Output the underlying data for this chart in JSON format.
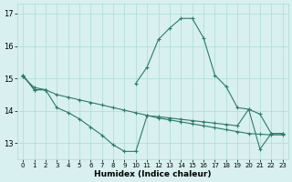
{
  "x": [
    0,
    1,
    2,
    3,
    4,
    5,
    6,
    7,
    8,
    9,
    10,
    11,
    12,
    13,
    14,
    15,
    16,
    17,
    18,
    19,
    20,
    21,
    22,
    23
  ],
  "line_top": [
    15.1,
    14.65,
    14.65,
    null,
    null,
    null,
    null,
    null,
    null,
    null,
    14.85,
    15.35,
    16.2,
    16.55,
    16.85,
    16.85,
    16.25,
    15.1,
    14.75,
    14.1,
    14.05,
    13.9,
    13.3,
    13.3
  ],
  "line_mid": [
    15.05,
    14.72,
    14.65,
    14.5,
    14.42,
    14.34,
    14.26,
    14.18,
    14.1,
    14.02,
    13.94,
    13.86,
    13.78,
    13.72,
    13.66,
    13.6,
    13.54,
    13.48,
    13.42,
    13.36,
    13.3,
    13.28,
    13.26,
    13.26
  ],
  "line_bot": [
    15.1,
    14.65,
    14.65,
    14.1,
    13.95,
    13.75,
    13.5,
    13.25,
    12.95,
    12.75,
    12.75,
    13.85,
    13.82,
    13.78,
    13.74,
    13.7,
    13.66,
    13.62,
    13.58,
    13.54,
    14.05,
    12.82,
    13.3,
    13.3
  ],
  "color": "#2d7a6e",
  "bg_color": "#d8f0ef",
  "grid_color": "#aaddd8",
  "ylim": [
    12.5,
    17.3
  ],
  "xlim": [
    -0.5,
    23.5
  ],
  "yticks": [
    13,
    14,
    15,
    16,
    17
  ],
  "xticks": [
    0,
    1,
    2,
    3,
    4,
    5,
    6,
    7,
    8,
    9,
    10,
    11,
    12,
    13,
    14,
    15,
    16,
    17,
    18,
    19,
    20,
    21,
    22,
    23
  ],
  "xlabel": "Humidex (Indice chaleur)"
}
